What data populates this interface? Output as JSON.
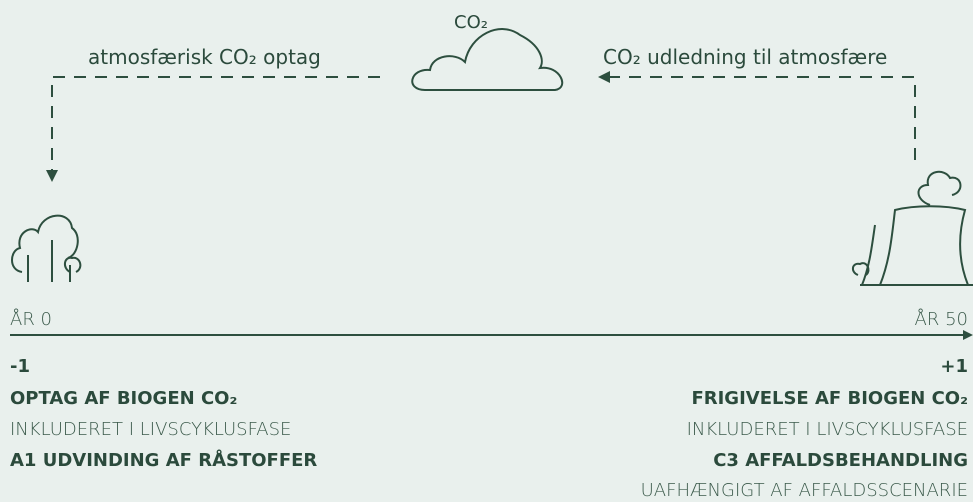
{
  "cloud": {
    "label": "CO₂"
  },
  "flows": {
    "uptake": "atmosfærisk CO₂ optag",
    "emission": "CO₂ udledning til atmosfære"
  },
  "timeline": {
    "start": "ÅR 0",
    "end": "ÅR 50"
  },
  "left": {
    "sign": "-1",
    "lines": [
      "OPTAG AF BIOGEN CO₂",
      "INKLUDERET I LIVSCYKLUSFASE",
      "A1 UDVINDING AF RÅSTOFFER"
    ]
  },
  "right": {
    "sign": "+1",
    "lines": [
      "FRIGIVELSE AF BIOGEN CO₂",
      "INKLUDERET I LIVSCYKLUSFASE",
      "C3 AFFALDSBEHANDLING",
      "UAFHÆNGIGT AF AFFALDSSCENARIE"
    ]
  }
}
